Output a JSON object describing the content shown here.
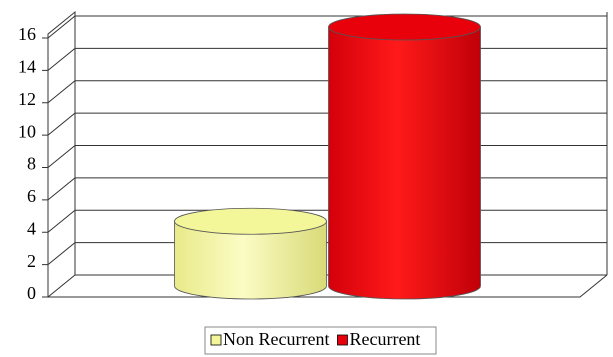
{
  "chart_data": {
    "type": "bar",
    "categories": [
      null
    ],
    "series": [
      {
        "name": "Non Recurrent",
        "color": "#f4f69a",
        "values": [
          4
        ]
      },
      {
        "name": "Recurrent",
        "color": "#e8000b",
        "values": [
          16
        ]
      }
    ],
    "ylim": [
      0,
      16
    ],
    "yticks": [
      0,
      2,
      4,
      6,
      8,
      10,
      12,
      14,
      16
    ],
    "grid": true,
    "legend": "bottom"
  }
}
